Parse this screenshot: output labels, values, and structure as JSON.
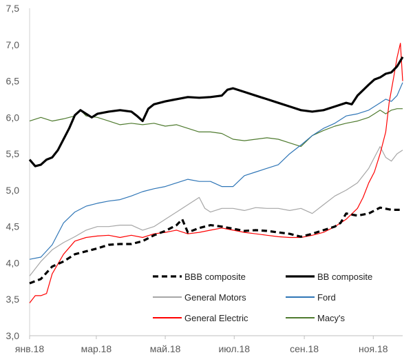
{
  "chart_data": {
    "type": "line",
    "title": "",
    "xlabel": "",
    "ylabel": "",
    "ylim": [
      3.0,
      7.5
    ],
    "yticks": [
      "3,0",
      "3,5",
      "4,0",
      "4,5",
      "5,0",
      "5,5",
      "6,0",
      "6,5",
      "7,0",
      "7,5"
    ],
    "ytick_values": [
      3.0,
      3.5,
      4.0,
      4.5,
      5.0,
      5.5,
      6.0,
      6.5,
      7.0,
      7.5
    ],
    "xlim": [
      0,
      330
    ],
    "xticks": [
      "янв.18",
      "мар.18",
      "май.18",
      "июл.18",
      "сен.18",
      "ноя.18"
    ],
    "xtick_values": [
      0,
      59,
      120,
      181,
      243,
      304
    ],
    "grid": false,
    "legend_position": "lower-right",
    "series": [
      {
        "name": "BBB composite",
        "color": "#000000",
        "style": "dashed-thick",
        "points": [
          [
            0,
            3.72
          ],
          [
            10,
            3.78
          ],
          [
            20,
            3.95
          ],
          [
            30,
            4.02
          ],
          [
            40,
            4.12
          ],
          [
            50,
            4.16
          ],
          [
            60,
            4.2
          ],
          [
            70,
            4.25
          ],
          [
            80,
            4.26
          ],
          [
            90,
            4.26
          ],
          [
            100,
            4.3
          ],
          [
            110,
            4.38
          ],
          [
            120,
            4.44
          ],
          [
            130,
            4.52
          ],
          [
            135,
            4.6
          ],
          [
            140,
            4.42
          ],
          [
            150,
            4.48
          ],
          [
            160,
            4.52
          ],
          [
            170,
            4.5
          ],
          [
            180,
            4.47
          ],
          [
            190,
            4.44
          ],
          [
            200,
            4.45
          ],
          [
            210,
            4.44
          ],
          [
            220,
            4.42
          ],
          [
            230,
            4.4
          ],
          [
            240,
            4.36
          ],
          [
            250,
            4.4
          ],
          [
            260,
            4.45
          ],
          [
            270,
            4.5
          ],
          [
            275,
            4.55
          ],
          [
            280,
            4.68
          ],
          [
            290,
            4.65
          ],
          [
            300,
            4.68
          ],
          [
            310,
            4.76
          ],
          [
            320,
            4.73
          ],
          [
            330,
            4.73
          ]
        ]
      },
      {
        "name": "BB composite",
        "color": "#000000",
        "style": "solid-thick",
        "points": [
          [
            0,
            5.42
          ],
          [
            5,
            5.33
          ],
          [
            10,
            5.35
          ],
          [
            15,
            5.42
          ],
          [
            20,
            5.45
          ],
          [
            25,
            5.55
          ],
          [
            30,
            5.7
          ],
          [
            35,
            5.85
          ],
          [
            40,
            6.03
          ],
          [
            45,
            6.1
          ],
          [
            50,
            6.05
          ],
          [
            55,
            6.0
          ],
          [
            60,
            6.05
          ],
          [
            70,
            6.08
          ],
          [
            80,
            6.1
          ],
          [
            90,
            6.08
          ],
          [
            95,
            6.02
          ],
          [
            100,
            5.95
          ],
          [
            105,
            6.12
          ],
          [
            110,
            6.18
          ],
          [
            120,
            6.22
          ],
          [
            130,
            6.25
          ],
          [
            140,
            6.28
          ],
          [
            150,
            6.27
          ],
          [
            160,
            6.28
          ],
          [
            170,
            6.3
          ],
          [
            175,
            6.38
          ],
          [
            180,
            6.4
          ],
          [
            190,
            6.35
          ],
          [
            200,
            6.3
          ],
          [
            210,
            6.25
          ],
          [
            220,
            6.2
          ],
          [
            230,
            6.15
          ],
          [
            240,
            6.1
          ],
          [
            250,
            6.08
          ],
          [
            260,
            6.1
          ],
          [
            270,
            6.15
          ],
          [
            280,
            6.2
          ],
          [
            285,
            6.18
          ],
          [
            290,
            6.3
          ],
          [
            300,
            6.45
          ],
          [
            305,
            6.52
          ],
          [
            310,
            6.55
          ],
          [
            315,
            6.6
          ],
          [
            320,
            6.62
          ],
          [
            325,
            6.7
          ],
          [
            330,
            6.83
          ]
        ]
      },
      {
        "name": "General Motors",
        "color": "#a6a6a6",
        "style": "solid",
        "points": [
          [
            0,
            3.82
          ],
          [
            10,
            4.02
          ],
          [
            20,
            4.18
          ],
          [
            30,
            4.28
          ],
          [
            40,
            4.36
          ],
          [
            50,
            4.45
          ],
          [
            60,
            4.5
          ],
          [
            70,
            4.5
          ],
          [
            80,
            4.52
          ],
          [
            90,
            4.52
          ],
          [
            100,
            4.45
          ],
          [
            110,
            4.5
          ],
          [
            120,
            4.6
          ],
          [
            130,
            4.7
          ],
          [
            140,
            4.8
          ],
          [
            150,
            4.9
          ],
          [
            155,
            4.75
          ],
          [
            160,
            4.7
          ],
          [
            170,
            4.75
          ],
          [
            180,
            4.75
          ],
          [
            190,
            4.72
          ],
          [
            200,
            4.76
          ],
          [
            210,
            4.75
          ],
          [
            220,
            4.75
          ],
          [
            230,
            4.72
          ],
          [
            240,
            4.75
          ],
          [
            250,
            4.68
          ],
          [
            260,
            4.8
          ],
          [
            270,
            4.92
          ],
          [
            280,
            5.0
          ],
          [
            290,
            5.1
          ],
          [
            300,
            5.3
          ],
          [
            305,
            5.45
          ],
          [
            310,
            5.6
          ],
          [
            315,
            5.45
          ],
          [
            320,
            5.4
          ],
          [
            325,
            5.5
          ],
          [
            330,
            5.55
          ]
        ]
      },
      {
        "name": "Ford",
        "color": "#2e75b6",
        "style": "solid",
        "points": [
          [
            0,
            4.05
          ],
          [
            10,
            4.08
          ],
          [
            20,
            4.25
          ],
          [
            30,
            4.55
          ],
          [
            40,
            4.7
          ],
          [
            50,
            4.78
          ],
          [
            60,
            4.82
          ],
          [
            70,
            4.85
          ],
          [
            80,
            4.87
          ],
          [
            90,
            4.92
          ],
          [
            100,
            4.98
          ],
          [
            110,
            5.02
          ],
          [
            120,
            5.05
          ],
          [
            130,
            5.1
          ],
          [
            140,
            5.15
          ],
          [
            150,
            5.12
          ],
          [
            160,
            5.12
          ],
          [
            170,
            5.05
          ],
          [
            180,
            5.05
          ],
          [
            190,
            5.2
          ],
          [
            200,
            5.25
          ],
          [
            210,
            5.3
          ],
          [
            220,
            5.35
          ],
          [
            230,
            5.5
          ],
          [
            240,
            5.62
          ],
          [
            250,
            5.75
          ],
          [
            260,
            5.85
          ],
          [
            270,
            5.92
          ],
          [
            280,
            6.02
          ],
          [
            290,
            6.05
          ],
          [
            300,
            6.1
          ],
          [
            305,
            6.15
          ],
          [
            310,
            6.2
          ],
          [
            315,
            6.25
          ],
          [
            320,
            6.22
          ],
          [
            325,
            6.3
          ],
          [
            330,
            6.48
          ]
        ]
      },
      {
        "name": "General Electric",
        "color": "#ff0000",
        "style": "solid",
        "points": [
          [
            0,
            3.45
          ],
          [
            5,
            3.55
          ],
          [
            10,
            3.55
          ],
          [
            15,
            3.58
          ],
          [
            20,
            3.85
          ],
          [
            30,
            4.12
          ],
          [
            40,
            4.3
          ],
          [
            50,
            4.35
          ],
          [
            60,
            4.37
          ],
          [
            70,
            4.38
          ],
          [
            80,
            4.35
          ],
          [
            90,
            4.38
          ],
          [
            100,
            4.35
          ],
          [
            110,
            4.4
          ],
          [
            120,
            4.42
          ],
          [
            130,
            4.45
          ],
          [
            140,
            4.4
          ],
          [
            150,
            4.42
          ],
          [
            160,
            4.45
          ],
          [
            170,
            4.48
          ],
          [
            180,
            4.45
          ],
          [
            190,
            4.42
          ],
          [
            200,
            4.4
          ],
          [
            210,
            4.38
          ],
          [
            220,
            4.36
          ],
          [
            230,
            4.35
          ],
          [
            240,
            4.35
          ],
          [
            250,
            4.38
          ],
          [
            260,
            4.42
          ],
          [
            270,
            4.5
          ],
          [
            280,
            4.6
          ],
          [
            290,
            4.75
          ],
          [
            295,
            4.9
          ],
          [
            300,
            5.1
          ],
          [
            305,
            5.25
          ],
          [
            310,
            5.5
          ],
          [
            315,
            5.8
          ],
          [
            318,
            6.2
          ],
          [
            322,
            6.55
          ],
          [
            325,
            6.82
          ],
          [
            328,
            7.02
          ],
          [
            330,
            6.5
          ]
        ]
      },
      {
        "name": "Macy's",
        "color": "#4e7a2e",
        "style": "solid",
        "points": [
          [
            0,
            5.95
          ],
          [
            10,
            6.0
          ],
          [
            20,
            5.95
          ],
          [
            30,
            5.98
          ],
          [
            40,
            6.02
          ],
          [
            45,
            6.1
          ],
          [
            50,
            6.02
          ],
          [
            60,
            6.0
          ],
          [
            70,
            5.95
          ],
          [
            80,
            5.9
          ],
          [
            90,
            5.92
          ],
          [
            100,
            5.9
          ],
          [
            110,
            5.92
          ],
          [
            120,
            5.88
          ],
          [
            130,
            5.9
          ],
          [
            140,
            5.85
          ],
          [
            150,
            5.8
          ],
          [
            160,
            5.8
          ],
          [
            170,
            5.78
          ],
          [
            180,
            5.7
          ],
          [
            190,
            5.68
          ],
          [
            200,
            5.7
          ],
          [
            210,
            5.72
          ],
          [
            220,
            5.7
          ],
          [
            230,
            5.65
          ],
          [
            240,
            5.6
          ],
          [
            250,
            5.75
          ],
          [
            260,
            5.82
          ],
          [
            270,
            5.88
          ],
          [
            280,
            5.92
          ],
          [
            290,
            5.95
          ],
          [
            300,
            6.0
          ],
          [
            305,
            6.05
          ],
          [
            310,
            6.1
          ],
          [
            315,
            6.05
          ],
          [
            320,
            6.1
          ],
          [
            325,
            6.12
          ],
          [
            330,
            6.12
          ]
        ]
      }
    ]
  }
}
